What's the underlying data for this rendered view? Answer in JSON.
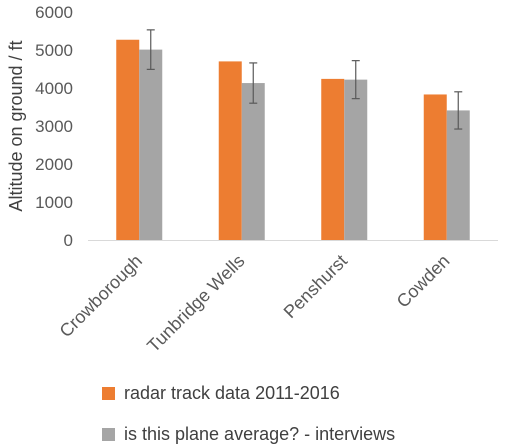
{
  "chart_data": {
    "type": "bar",
    "categories": [
      "Crowborough",
      "Tunbridge Wells",
      "Penshurst",
      "Cowden"
    ],
    "series": [
      {
        "name": "radar track data 2011-2016",
        "color": "#ED7D31",
        "values": [
          5270,
          4700,
          4240,
          3830
        ]
      },
      {
        "name": "is this plane average? - interviews",
        "color": "#A5A5A5",
        "values": [
          5010,
          4130,
          4220,
          3410
        ],
        "error": [
          520,
          530,
          500,
          490
        ]
      }
    ],
    "title": "",
    "xlabel": "",
    "ylabel": "Altitude on ground / ft",
    "ylim": [
      0,
      6000
    ],
    "yticks": [
      0,
      1000,
      2000,
      3000,
      4000,
      5000,
      6000
    ],
    "grid": false,
    "legend_position": "bottom"
  }
}
